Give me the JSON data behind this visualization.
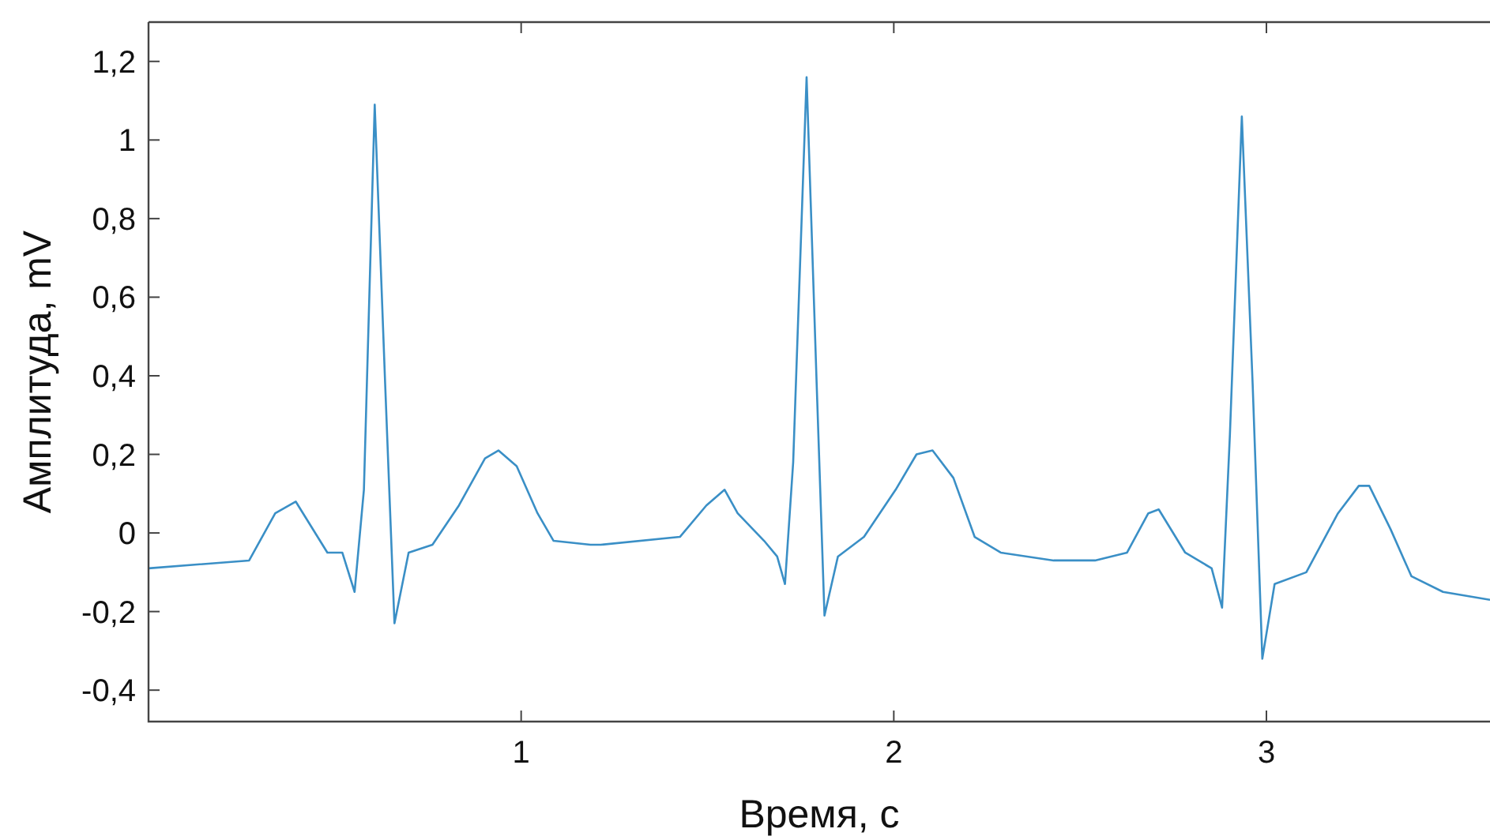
{
  "chart_data": {
    "type": "line",
    "xlabel": "Время, с",
    "ylabel": "Амплитуда, mV",
    "xlim": [
      0,
      3.6
    ],
    "ylim": [
      -0.48,
      1.3
    ],
    "xticks": [
      1,
      2,
      3
    ],
    "yticks": [
      {
        "value": -0.4,
        "label": "-0,4"
      },
      {
        "value": -0.2,
        "label": "-0,2"
      },
      0,
      {
        "value": 0.2,
        "label": "0,2"
      },
      {
        "value": 0.4,
        "label": "0,4"
      },
      {
        "value": 0.6,
        "label": "0,6"
      },
      {
        "value": 0.8,
        "label": "0,8"
      },
      1,
      {
        "value": 1.2,
        "label": "1,2"
      }
    ],
    "grid": false,
    "marker": "none",
    "line_style": "solid",
    "series": [
      {
        "color": "#3a8fc6",
        "x": [
          0,
          0.27,
          0.34,
          0.395,
          0.48,
          0.52,
          0.553,
          0.578,
          0.607,
          0.635,
          0.66,
          0.698,
          0.762,
          0.833,
          0.903,
          0.939,
          0.988,
          1.044,
          1.087,
          1.186,
          1.214,
          1.426,
          1.497,
          1.546,
          1.581,
          1.652,
          1.687,
          1.708,
          1.73,
          1.766,
          1.793,
          1.814,
          1.85,
          1.92,
          2.005,
          2.061,
          2.104,
          2.16,
          2.217,
          2.287,
          2.429,
          2.54,
          2.626,
          2.683,
          2.711,
          2.782,
          2.853,
          2.881,
          2.902,
          2.934,
          2.963,
          2.989,
          3.022,
          3.107,
          3.192,
          3.248,
          3.276,
          3.333,
          3.389,
          3.474,
          3.6
        ],
        "values": [
          -0.09,
          -0.07,
          0.05,
          0.08,
          -0.05,
          -0.05,
          -0.15,
          0.11,
          1.09,
          0.38,
          -0.23,
          -0.05,
          -0.03,
          0.07,
          0.19,
          0.21,
          0.17,
          0.05,
          -0.02,
          -0.03,
          -0.03,
          -0.01,
          0.07,
          0.11,
          0.05,
          -0.02,
          -0.06,
          -0.13,
          0.18,
          1.16,
          0.38,
          -0.21,
          -0.06,
          -0.01,
          0.11,
          0.2,
          0.21,
          0.14,
          -0.01,
          -0.05,
          -0.07,
          -0.07,
          -0.05,
          0.05,
          0.06,
          -0.05,
          -0.09,
          -0.19,
          0.25,
          1.06,
          0.38,
          -0.32,
          -0.13,
          -0.1,
          0.05,
          0.12,
          0.12,
          0.01,
          -0.11,
          -0.15,
          -0.17
        ]
      }
    ]
  }
}
